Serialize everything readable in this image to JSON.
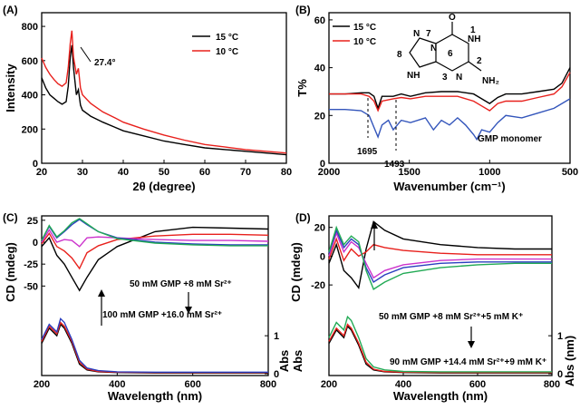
{
  "chart_data": [
    {
      "panel_label": "(A)",
      "type": "line",
      "xlabel": "2θ (degree)",
      "ylabel": "Intensity",
      "xlim": [
        20,
        80
      ],
      "ylim": [
        0,
        880
      ],
      "xticks": [
        20,
        30,
        40,
        50,
        60,
        70,
        80
      ],
      "yticks": [
        0,
        200,
        400,
        600,
        800
      ],
      "legend": "top-right",
      "annotation": "27.4°",
      "series": [
        {
          "name": "15 °C",
          "color": "#000000",
          "x": [
            20,
            21,
            22,
            23,
            24,
            25,
            26,
            26.5,
            27,
            27.4,
            27.8,
            28.5,
            29,
            29.5,
            30,
            32,
            35,
            38,
            40,
            45,
            50,
            55,
            60,
            65,
            70,
            75,
            80
          ],
          "y": [
            500,
            440,
            400,
            380,
            360,
            345,
            360,
            450,
            620,
            690,
            560,
            400,
            430,
            340,
            310,
            275,
            240,
            210,
            190,
            160,
            130,
            110,
            90,
            80,
            70,
            60,
            50
          ]
        },
        {
          "name": "10 °C",
          "color": "#e8201c",
          "x": [
            20,
            21,
            22,
            23,
            24,
            25,
            26,
            26.5,
            27,
            27.4,
            27.8,
            28.5,
            29,
            29.5,
            30,
            32,
            35,
            38,
            40,
            45,
            50,
            55,
            60,
            65,
            70,
            75,
            80
          ],
          "y": [
            615,
            560,
            520,
            490,
            465,
            450,
            470,
            560,
            700,
            775,
            620,
            520,
            555,
            440,
            400,
            350,
            300,
            265,
            240,
            200,
            165,
            135,
            110,
            95,
            80,
            70,
            60
          ]
        }
      ]
    },
    {
      "panel_label": "(B)",
      "type": "line",
      "xlabel": "Wavenumber (cm⁻¹)",
      "ylabel": "T%",
      "xlim": [
        2000,
        500
      ],
      "ylim": [
        0,
        63
      ],
      "xticks": [
        2000,
        1500,
        1000,
        500
      ],
      "yticks": [
        0,
        20,
        40,
        60
      ],
      "legend": "top-left",
      "annotations": [
        "1695",
        "1493",
        "GMP monomer",
        "8",
        "6"
      ],
      "structure_labels": [
        "N",
        "N",
        "NH",
        "N",
        "NH",
        "NH₂",
        "O",
        "7",
        "1",
        "2",
        "3"
      ],
      "series": [
        {
          "name": "15 °C",
          "color": "#000000",
          "x": [
            2000,
            1900,
            1800,
            1750,
            1720,
            1695,
            1670,
            1600,
            1550,
            1493,
            1400,
            1300,
            1200,
            1100,
            1050,
            1000,
            950,
            900,
            800,
            700,
            600,
            550,
            500
          ],
          "y": [
            29,
            29,
            29.5,
            29.5,
            28,
            23,
            28,
            28,
            29,
            28,
            29.5,
            30,
            30,
            29,
            27,
            25,
            27.5,
            29,
            29,
            30,
            31,
            33.5,
            40
          ]
        },
        {
          "name": "10 °C",
          "color": "#e8201c",
          "x": [
            2000,
            1900,
            1800,
            1750,
            1720,
            1695,
            1670,
            1600,
            1550,
            1493,
            1400,
            1300,
            1200,
            1100,
            1050,
            1000,
            950,
            900,
            800,
            700,
            600,
            550,
            500
          ],
          "y": [
            29,
            29,
            29,
            28,
            26,
            22,
            26,
            27,
            27.5,
            27,
            28,
            28,
            28,
            26,
            24,
            22,
            25,
            26,
            26,
            27.5,
            29,
            32,
            38
          ]
        },
        {
          "name": "GMP monomer",
          "color": "#3355bb",
          "x": [
            2000,
            1900,
            1800,
            1750,
            1720,
            1695,
            1670,
            1630,
            1600,
            1550,
            1493,
            1400,
            1350,
            1300,
            1250,
            1200,
            1150,
            1100,
            1080,
            1050,
            1000,
            950,
            900,
            800,
            700,
            600,
            500
          ],
          "y": [
            22.5,
            22.5,
            22,
            20,
            15,
            11,
            16,
            18,
            14,
            18,
            17,
            19,
            14,
            18,
            16,
            19,
            16,
            12,
            10,
            14,
            13,
            17,
            20,
            19,
            21,
            23,
            27
          ]
        }
      ]
    },
    {
      "panel_label": "(C)",
      "type": "line",
      "xlabel": "Wavelength (nm)",
      "ylabel": "CD (mdeg)",
      "ylabel_right": "Abs",
      "xlim": [
        200,
        800
      ],
      "xticks": [
        200,
        400,
        600,
        800
      ],
      "yticks": [
        25,
        0,
        -25,
        -50
      ],
      "yticks_right": [
        0,
        1.0
      ],
      "annotations": [
        "50 mM GMP +8 mM Sr²⁺",
        "100 mM GMP +16.0 mM Sr²⁺"
      ],
      "cd_series": [
        {
          "color": "#000000",
          "x": [
            200,
            220,
            240,
            260,
            280,
            300,
            320,
            350,
            400,
            500,
            600,
            700,
            800
          ],
          "y": [
            -5,
            5,
            -15,
            -25,
            -40,
            -55,
            -40,
            -20,
            -5,
            12,
            17,
            16,
            15
          ]
        },
        {
          "color": "#e8201c",
          "x": [
            200,
            220,
            240,
            260,
            280,
            300,
            320,
            350,
            400,
            500,
            600,
            700,
            800
          ],
          "y": [
            -2,
            10,
            -5,
            -10,
            -18,
            -30,
            -12,
            -4,
            3,
            7,
            9,
            9,
            8
          ]
        },
        {
          "color": "#cc33cc",
          "x": [
            200,
            220,
            240,
            260,
            280,
            300,
            320,
            350,
            400,
            500,
            600,
            700,
            800
          ],
          "y": [
            0,
            14,
            0,
            3,
            2,
            -5,
            5,
            6,
            5,
            3,
            2,
            2,
            1
          ]
        },
        {
          "color": "#2b3fbf",
          "x": [
            200,
            220,
            240,
            260,
            280,
            300,
            320,
            350,
            400,
            500,
            600,
            700,
            800
          ],
          "y": [
            2,
            18,
            5,
            12,
            20,
            26,
            20,
            12,
            5,
            0,
            -2,
            -3,
            -3
          ]
        },
        {
          "color": "#22aa55",
          "x": [
            200,
            220,
            240,
            260,
            280,
            300,
            320,
            350,
            400,
            500,
            600,
            700,
            800
          ],
          "y": [
            2,
            19,
            6,
            13,
            22,
            27,
            21,
            12,
            4,
            -1,
            -3,
            -4,
            -4
          ]
        }
      ],
      "abs_series": [
        {
          "color": "#000000",
          "x": [
            200,
            220,
            240,
            250,
            260,
            280,
            300,
            320,
            350,
            400,
            500,
            600,
            700,
            800
          ],
          "y": [
            0.8,
            1.2,
            1.0,
            1.3,
            1.2,
            0.8,
            0.25,
            0.1,
            0.05,
            0.03,
            0.02,
            0.02,
            0.02,
            0.02
          ]
        },
        {
          "color": "#e8201c",
          "x": [
            200,
            220,
            240,
            250,
            260,
            280,
            300,
            320,
            350,
            400,
            500,
            600,
            700,
            800
          ],
          "y": [
            0.85,
            1.25,
            1.05,
            1.35,
            1.25,
            0.85,
            0.3,
            0.12,
            0.06,
            0.04,
            0.03,
            0.03,
            0.03,
            0.03
          ]
        },
        {
          "color": "#2b3fbf",
          "x": [
            200,
            220,
            240,
            250,
            260,
            280,
            300,
            320,
            350,
            400,
            500,
            600,
            700,
            800
          ],
          "y": [
            0.9,
            1.3,
            1.1,
            1.45,
            1.35,
            0.9,
            0.35,
            0.15,
            0.08,
            0.05,
            0.04,
            0.04,
            0.04,
            0.04
          ]
        }
      ]
    },
    {
      "panel_label": "(D)",
      "type": "line",
      "xlabel": "Wavelength (nm)",
      "ylabel": "CD (mdeg)",
      "ylabel_right": "Abs (nm)",
      "xlim": [
        200,
        800
      ],
      "xticks": [
        200,
        400,
        600,
        800
      ],
      "yticks": [
        20,
        0,
        -20
      ],
      "yticks_right": [
        0,
        1.0
      ],
      "annotations": [
        "50 mM GMP +8 mM Sr²⁺+5 mM K⁺",
        "90 mM GMP +14.4 mM Sr²⁺+9 mM K⁺"
      ],
      "cd_series": [
        {
          "color": "#000000",
          "x": [
            200,
            220,
            240,
            260,
            280,
            300,
            320,
            350,
            400,
            500,
            600,
            700,
            800
          ],
          "y": [
            -5,
            8,
            -10,
            -15,
            -22,
            5,
            24,
            18,
            12,
            8,
            6,
            5,
            5
          ]
        },
        {
          "color": "#e8201c",
          "x": [
            200,
            220,
            240,
            260,
            280,
            300,
            320,
            350,
            400,
            500,
            600,
            700,
            800
          ],
          "y": [
            -2,
            12,
            -3,
            5,
            0,
            3,
            8,
            6,
            4,
            2,
            1,
            1,
            1
          ]
        },
        {
          "color": "#cc33cc",
          "x": [
            200,
            220,
            240,
            260,
            280,
            300,
            320,
            350,
            400,
            500,
            600,
            700,
            800
          ],
          "y": [
            0,
            16,
            3,
            10,
            6,
            -5,
            -15,
            -10,
            -6,
            -3,
            -2,
            -2,
            -2
          ]
        },
        {
          "color": "#2b3fbf",
          "x": [
            200,
            220,
            240,
            260,
            280,
            300,
            320,
            350,
            400,
            500,
            600,
            700,
            800
          ],
          "y": [
            2,
            18,
            6,
            12,
            8,
            -8,
            -18,
            -13,
            -8,
            -5,
            -4,
            -4,
            -4
          ]
        },
        {
          "color": "#22aa55",
          "x": [
            200,
            220,
            240,
            260,
            280,
            300,
            320,
            350,
            400,
            500,
            600,
            700,
            800
          ],
          "y": [
            3,
            20,
            8,
            14,
            10,
            -10,
            -23,
            -18,
            -12,
            -8,
            -6,
            -5,
            -5
          ]
        }
      ],
      "abs_series": [
        {
          "color": "#000000",
          "x": [
            200,
            220,
            240,
            250,
            260,
            280,
            300,
            320,
            350,
            400,
            500,
            600,
            700,
            800
          ],
          "y": [
            0.8,
            1.15,
            0.95,
            1.25,
            1.15,
            0.75,
            0.25,
            0.1,
            0.05,
            0.03,
            0.02,
            0.02,
            0.02,
            0.02
          ]
        },
        {
          "color": "#e8201c",
          "x": [
            200,
            220,
            240,
            250,
            260,
            280,
            300,
            320,
            350,
            400,
            500,
            600,
            700,
            800
          ],
          "y": [
            0.85,
            1.2,
            1.0,
            1.3,
            1.2,
            0.8,
            0.3,
            0.12,
            0.06,
            0.04,
            0.03,
            0.03,
            0.03,
            0.03
          ]
        },
        {
          "color": "#22aa55",
          "x": [
            200,
            220,
            240,
            250,
            260,
            280,
            300,
            320,
            350,
            400,
            500,
            600,
            700,
            800
          ],
          "y": [
            0.95,
            1.35,
            1.15,
            1.5,
            1.4,
            0.95,
            0.4,
            0.18,
            0.1,
            0.06,
            0.05,
            0.05,
            0.05,
            0.05
          ]
        }
      ]
    }
  ]
}
